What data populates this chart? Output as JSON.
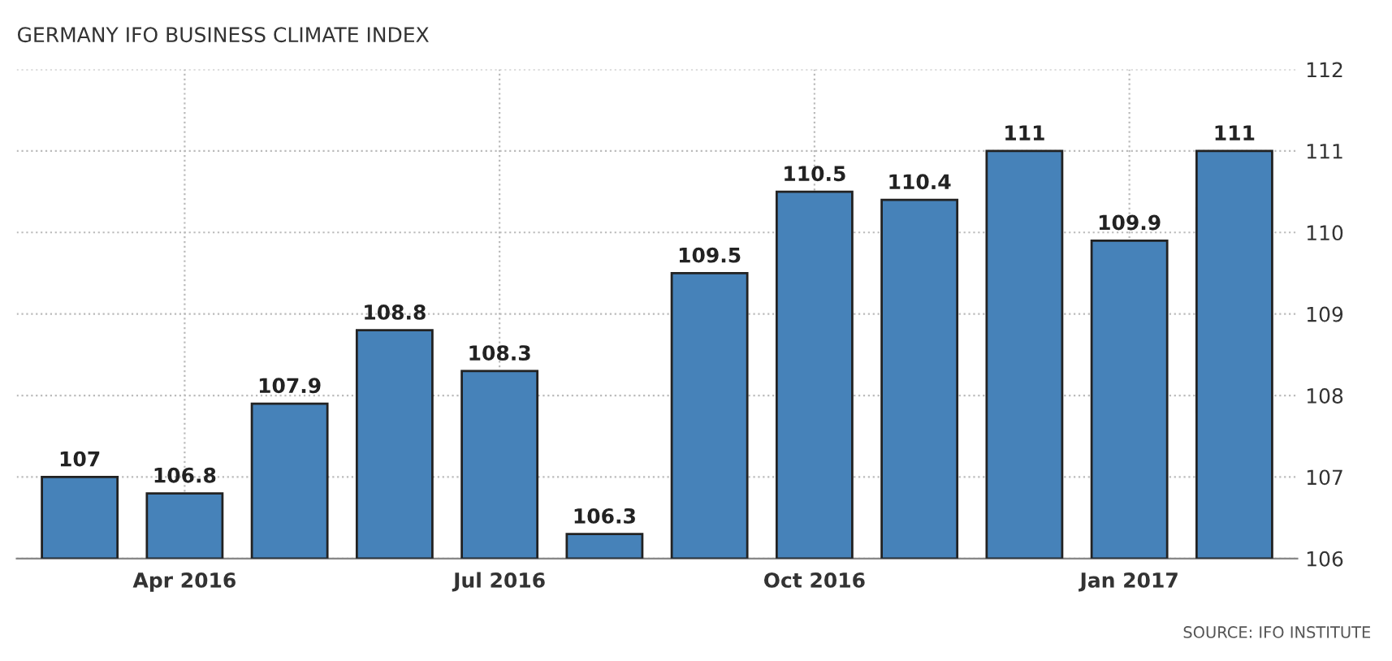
{
  "chart_data": {
    "type": "bar",
    "title": "GERMANY IFO BUSINESS CLIMATE INDEX",
    "categories": [
      null,
      "Apr 2016",
      null,
      null,
      "Jul 2016",
      null,
      null,
      "Oct 2016",
      null,
      null,
      "Jan 2017",
      null
    ],
    "values": [
      107,
      106.8,
      107.9,
      108.8,
      108.3,
      106.3,
      109.5,
      110.5,
      110.4,
      111,
      109.9,
      111
    ],
    "color": "#4682b9",
    "ylim": [
      106,
      112
    ],
    "yticks": [
      106,
      107,
      108,
      109,
      110,
      111,
      112
    ],
    "grid": true,
    "data_labels": true,
    "annotations": [
      "SOURCE: IFO INSTITUTE"
    ]
  }
}
